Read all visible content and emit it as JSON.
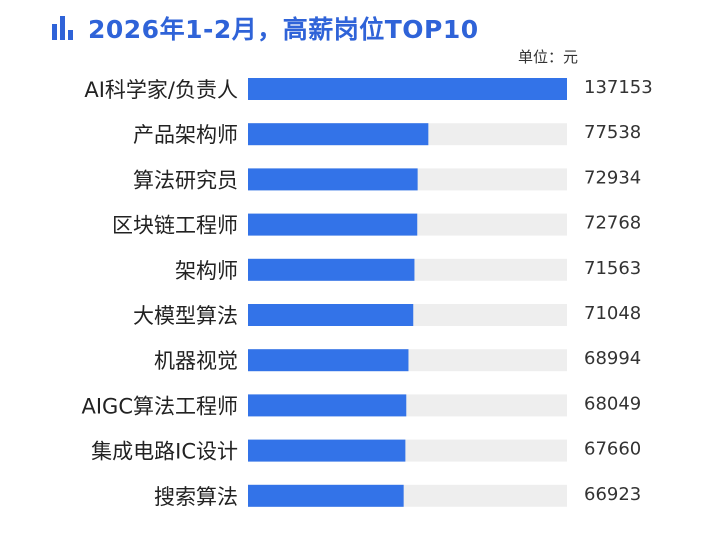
{
  "title": "2026年1-2月，高薪岗位TOP10",
  "unit_label": "单位：元",
  "colors": {
    "bar": "#3373e8",
    "track": "#eeeeee",
    "title": "#2f63d8",
    "text": "#222222"
  },
  "chart_data": {
    "type": "bar",
    "orientation": "horizontal",
    "title": "2026年1-2月，高薪岗位TOP10",
    "unit": "元",
    "categories": [
      "AI科学家/负责人",
      "产品架构师",
      "算法研究员",
      "区块链工程师",
      "架构师",
      "大模型算法",
      "机器视觉",
      "AIGC算法工程师",
      "集成电路IC设计",
      "搜索算法"
    ],
    "values": [
      137153,
      77538,
      72934,
      72768,
      71563,
      71048,
      68994,
      68049,
      67660,
      66923
    ],
    "xlim": [
      0,
      137153
    ],
    "grid": false,
    "legend": "none"
  }
}
